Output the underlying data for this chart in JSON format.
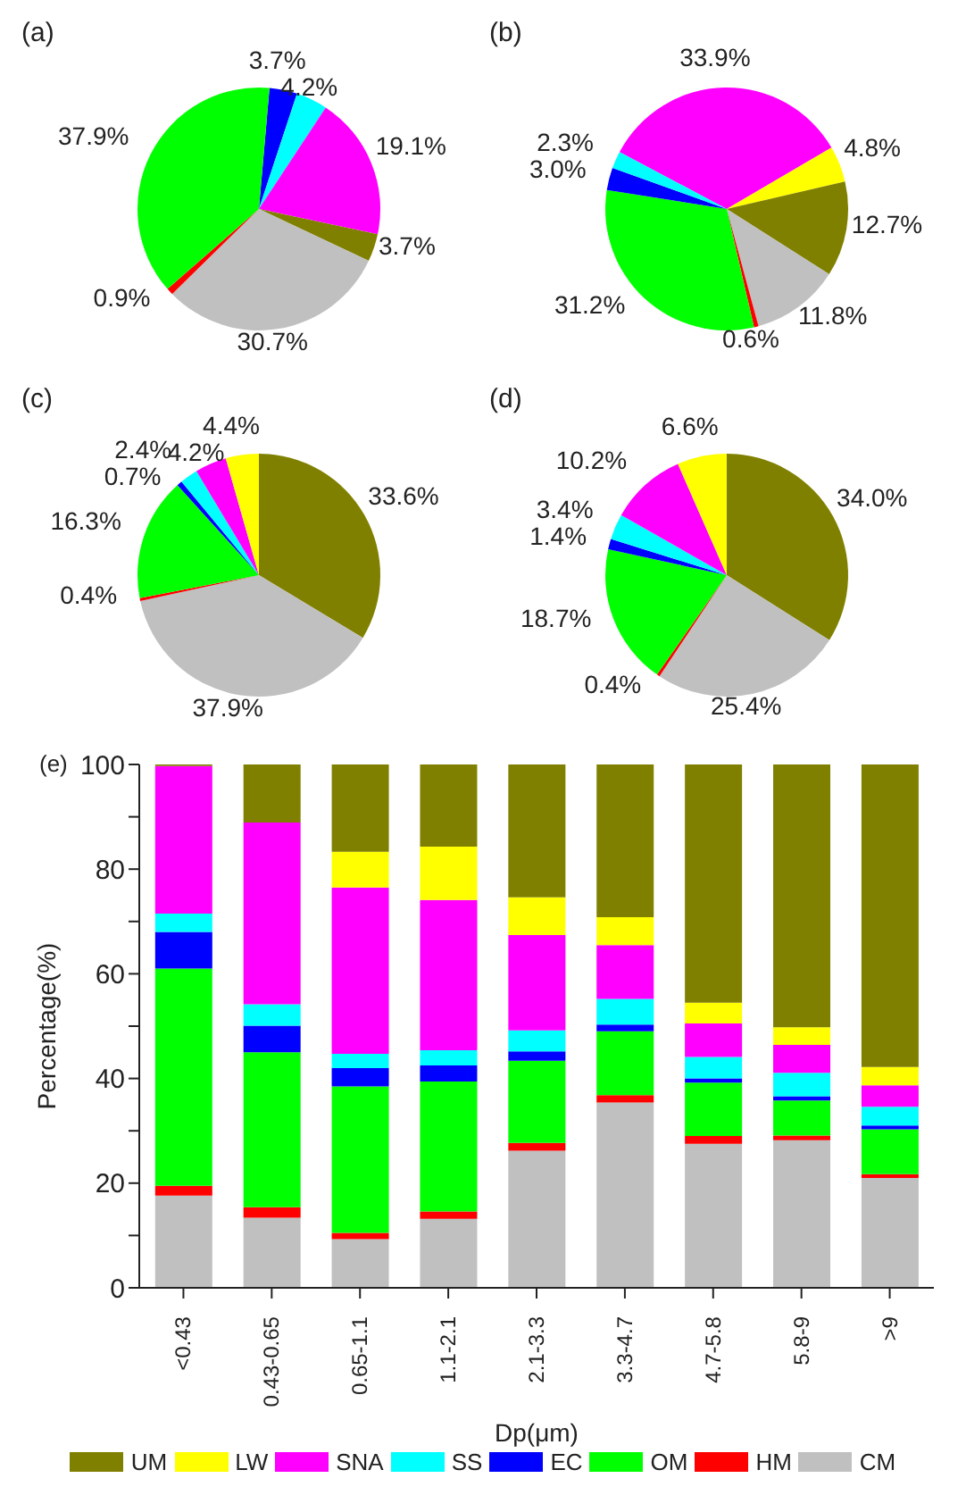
{
  "chart_data": [
    {
      "type": "pie",
      "title": "(a)",
      "categories": [
        null,
        null,
        null,
        null,
        null,
        null,
        null
      ],
      "values": [
        3.7,
        4.2,
        19.1,
        3.7,
        30.7,
        0.9,
        37.9
      ],
      "colors": [
        "#0000ff",
        "#00ffff",
        "#ff00ff",
        "#808000",
        "#c0c0c0",
        "#ff0000",
        "#00ff00"
      ],
      "value_labels": [
        "3.7%",
        "4.2%",
        "19.1%",
        "3.7%",
        "30.7%",
        "0.9%",
        "37.9%"
      ]
    },
    {
      "type": "pie",
      "title": "(b)",
      "categories": [
        null,
        null,
        null,
        null,
        null,
        null,
        null,
        null
      ],
      "values": [
        33.9,
        4.8,
        12.7,
        11.8,
        0.6,
        31.2,
        3.0,
        2.3
      ],
      "colors": [
        "#ff00ff",
        "#ffff00",
        "#808000",
        "#c0c0c0",
        "#ff0000",
        "#00ff00",
        "#0000ff",
        "#00ffff"
      ],
      "value_labels": [
        "33.9%",
        "4.8%",
        "12.7%",
        "11.8%",
        "0.6%",
        "31.2%",
        "3.0%",
        "2.3%"
      ]
    },
    {
      "type": "pie",
      "title": "(c)",
      "categories": [
        null,
        null,
        null,
        null,
        null,
        null,
        null,
        null
      ],
      "values": [
        33.6,
        37.9,
        0.4,
        16.3,
        0.7,
        2.4,
        4.2,
        4.4
      ],
      "colors": [
        "#808000",
        "#c0c0c0",
        "#ff0000",
        "#00ff00",
        "#0000ff",
        "#00ffff",
        "#ff00ff",
        "#ffff00"
      ],
      "value_labels": [
        "33.6%",
        "37.9%",
        "0.4%",
        "16.3%",
        "0.7%",
        "2.4%",
        "4.2%",
        "4.4%"
      ]
    },
    {
      "type": "pie",
      "title": "(d)",
      "categories": [
        null,
        null,
        null,
        null,
        null,
        null,
        null,
        null
      ],
      "values": [
        34.0,
        25.4,
        0.4,
        18.7,
        1.4,
        3.4,
        10.2,
        6.6
      ],
      "colors": [
        "#808000",
        "#c0c0c0",
        "#ff0000",
        "#00ff00",
        "#0000ff",
        "#00ffff",
        "#ff00ff",
        "#ffff00"
      ],
      "value_labels": [
        "34.0%",
        "25.4%",
        "0.4%",
        "18.7%",
        "1.4%",
        "3.4%",
        "10.2%",
        "6.6%"
      ]
    },
    {
      "type": "bar",
      "title": "(e)",
      "stacked": true,
      "xlabel": "Dp(μm)",
      "ylabel": "Percentage(%)",
      "categories": [
        "<0.43",
        "0.43-0.65",
        "0.65-1.1",
        "1.1-2.1",
        "2.1-3.3",
        "3.3-4.7",
        "4.7-5.8",
        "5.8-9",
        ">9"
      ],
      "ylim": [
        0,
        100
      ],
      "yticks": [
        0,
        {
          "value": 10,
          "label": null
        },
        20,
        {
          "value": 30,
          "label": null
        },
        40,
        {
          "value": 50,
          "label": null
        },
        60,
        {
          "value": 70,
          "label": null
        },
        80,
        {
          "value": 90,
          "label": null
        },
        100
      ],
      "legend": "bottom",
      "series": [
        {
          "name": "CM",
          "color": "#c0c0c0",
          "values": [
            17.6,
            13.4,
            9.3,
            13.2,
            26.2,
            35.4,
            27.5,
            28.2,
            21.0
          ]
        },
        {
          "name": "HM",
          "color": "#ff0000",
          "values": [
            1.9,
            2.0,
            1.2,
            1.4,
            1.5,
            1.4,
            1.5,
            0.9,
            0.7
          ]
        },
        {
          "name": "OM",
          "color": "#00ff00",
          "values": [
            41.5,
            29.6,
            28.0,
            24.8,
            15.7,
            12.2,
            10.2,
            6.7,
            8.6
          ]
        },
        {
          "name": "EC",
          "color": "#0000ff",
          "values": [
            7.0,
            5.1,
            3.5,
            3.1,
            1.8,
            1.3,
            0.8,
            0.8,
            0.7
          ]
        },
        {
          "name": "SS",
          "color": "#00ffff",
          "values": [
            3.5,
            4.1,
            2.7,
            2.9,
            4.0,
            4.9,
            4.1,
            4.5,
            3.6
          ]
        },
        {
          "name": "SNA",
          "color": "#ff00ff",
          "values": [
            28.2,
            34.7,
            31.8,
            28.7,
            18.2,
            10.3,
            6.4,
            5.3,
            4.1
          ]
        },
        {
          "name": "LW",
          "color": "#ffff00",
          "values": [
            0,
            0,
            6.8,
            10.2,
            7.2,
            5.3,
            4.0,
            3.4,
            3.5
          ]
        },
        {
          "name": "UM",
          "color": "#808000",
          "values": [
            0.3,
            11.1,
            16.7,
            15.7,
            25.4,
            29.2,
            45.5,
            50.2,
            57.8
          ]
        }
      ]
    }
  ]
}
